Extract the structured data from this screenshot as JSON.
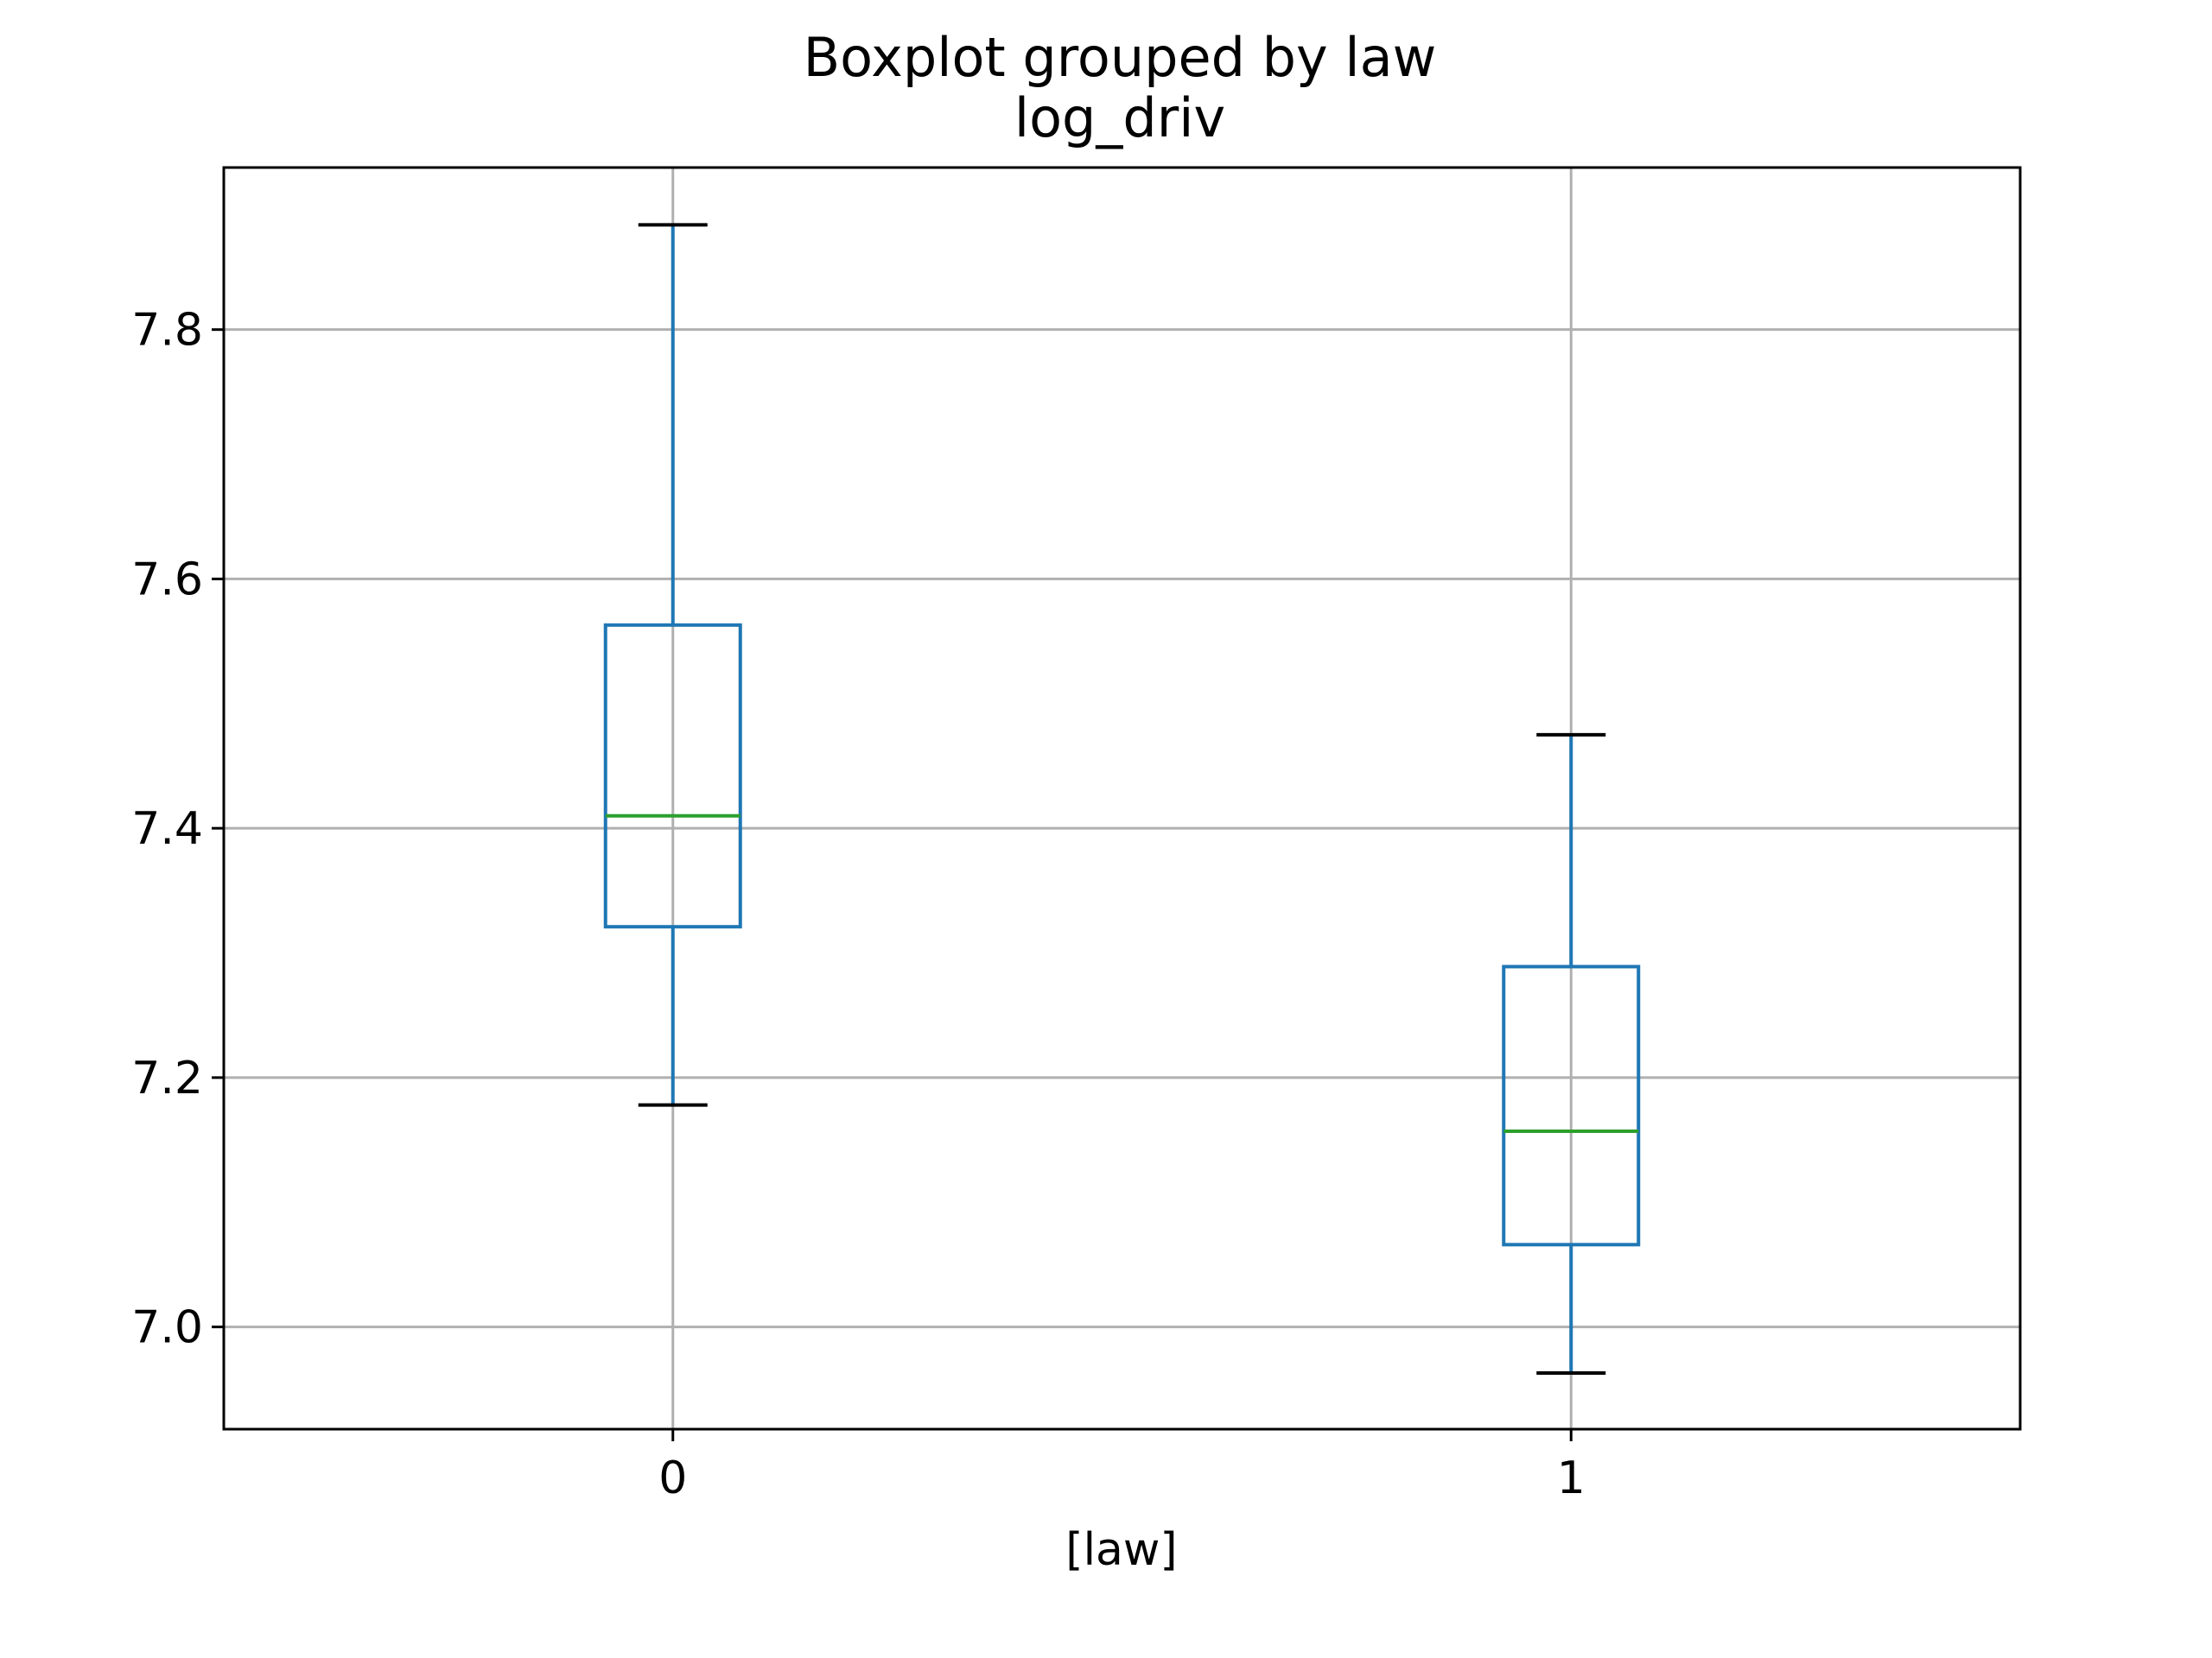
{
  "chart_data": {
    "type": "boxplot",
    "title": "Boxplot grouped by law",
    "subtitle": "log_driv",
    "xlabel": "[law]",
    "ylabel": "",
    "categories": [
      "0",
      "1"
    ],
    "boxes": [
      {
        "category": "0",
        "whisker_low": 7.178,
        "q1": 7.321,
        "median": 7.41,
        "q3": 7.563,
        "whisker_high": 7.884
      },
      {
        "category": "1",
        "whisker_low": 6.963,
        "q1": 7.066,
        "median": 7.157,
        "q3": 7.289,
        "whisker_high": 7.475
      }
    ],
    "ylim": [
      6.918,
      7.93
    ],
    "yticks": [
      7.0,
      7.2,
      7.4,
      7.6,
      7.8
    ],
    "ytick_labels": [
      "7.0",
      "7.2",
      "7.4",
      "7.6",
      "7.8"
    ],
    "grid": true,
    "colors": {
      "box": "#1f77b4",
      "median": "#2ca02c",
      "caps": "#000000",
      "grid": "#b0b0b0",
      "frame": "#000000"
    }
  }
}
